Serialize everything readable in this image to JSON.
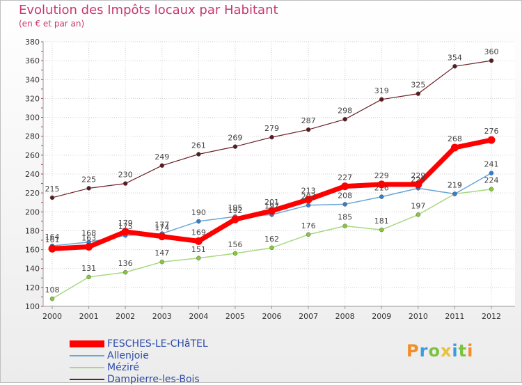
{
  "header": {
    "title": "Evolution des Impôts locaux par Habitant",
    "subtitle": "(en € et par an)"
  },
  "logo": {
    "text": "Proxiti"
  },
  "chart_data": {
    "type": "line",
    "title": "Evolution des Impôts locaux par Habitant",
    "subtitle": "(en € et par an)",
    "xlabel": "",
    "ylabel": "",
    "ylim": [
      100,
      380
    ],
    "yticks": [
      100,
      120,
      140,
      160,
      180,
      200,
      220,
      240,
      260,
      280,
      300,
      320,
      340,
      360,
      380
    ],
    "x": [
      "2000",
      "2001",
      "2002",
      "2003",
      "2004",
      "2005",
      "2006",
      "2007",
      "2008",
      "2009",
      "2010",
      "2011",
      "2012"
    ],
    "grid": true,
    "legend_position": "bottom-left",
    "series": [
      {
        "name": "Dampierre-les-Bois",
        "color": "#6b1f24",
        "width": 1.2,
        "values": [
          215,
          225,
          230,
          249,
          261,
          269,
          279,
          287,
          298,
          319,
          325,
          354,
          360
        ]
      },
      {
        "name": "Méziré",
        "color": "#a8d880",
        "width": 1.5,
        "values": [
          108,
          131,
          136,
          147,
          151,
          156,
          162,
          176,
          185,
          181,
          197,
          219,
          224
        ]
      },
      {
        "name": "Allenjoie",
        "color": "#6aa6d8",
        "width": 1.5,
        "values": [
          164,
          168,
          175,
          177,
          190,
          195,
          197,
          207,
          208,
          216,
          225,
          219,
          241
        ]
      },
      {
        "name": "FESCHES-LE-CHâTEL",
        "color": "#ff0000",
        "width": 7,
        "values": [
          161,
          163,
          179,
          174,
          169,
          192,
          201,
          213,
          227,
          229,
          229,
          268,
          276
        ]
      }
    ],
    "legend_order": [
      "FESCHES-LE-CHâTEL",
      "Allenjoie",
      "Méziré",
      "Dampierre-les-Bois"
    ],
    "marker_colors": {
      "Dampierre-les-Bois": "#5a1a20",
      "Méziré": "#88c83c",
      "Allenjoie": "#2e7fd1",
      "FESCHES-LE-CHâTEL": "#ff0000"
    }
  }
}
